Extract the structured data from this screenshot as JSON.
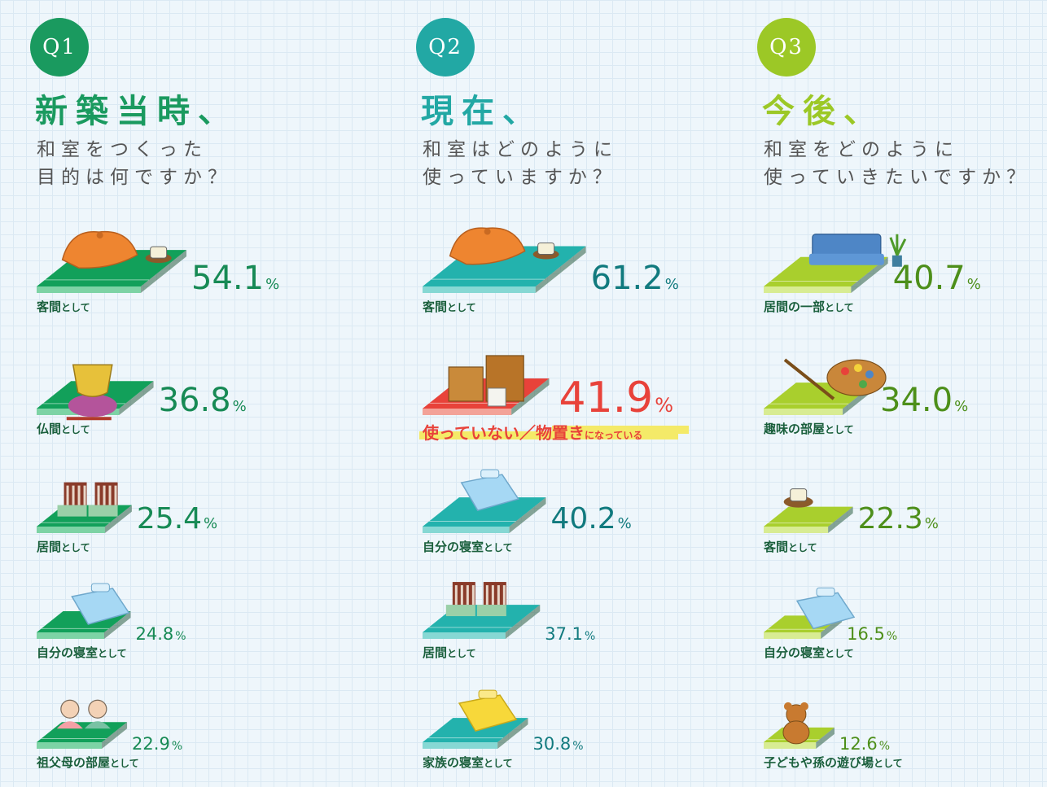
{
  "columns": [
    {
      "id": "q1",
      "badge": "Q1",
      "heading": "新築当時、",
      "subtitle_lines": [
        "和室をつくった",
        "目的は何ですか？"
      ],
      "color": "#178a55",
      "label_color": "#1a5f3c",
      "badge_color": "#1a9a5f"
    },
    {
      "id": "q2",
      "badge": "Q2",
      "heading": "現在、",
      "subtitle_lines": [
        "和室はどのように",
        "使っていますか？"
      ],
      "color": "#117a7e",
      "label_color": "#1a5f3c",
      "badge_color": "#22a8a4"
    },
    {
      "id": "q3",
      "badge": "Q3",
      "heading": "今後、",
      "subtitle_lines": [
        "和室をどのように",
        "使っていきたいですか？"
      ],
      "color": "#4d8f1a",
      "label_color": "#1a5f3c",
      "badge_color": "#9cc826"
    }
  ],
  "chart_data": [
    {
      "type": "bar",
      "title": "新築当時、和室をつくった目的は何ですか？",
      "categories": [
        "客間として",
        "仏間として",
        "居間として",
        "自分の寝室として",
        "祖父母の部屋として"
      ],
      "values": [
        54.1,
        36.8,
        25.4,
        24.8,
        22.9
      ],
      "unit": "%"
    },
    {
      "type": "bar",
      "title": "現在、和室はどのように使っていますか？",
      "categories": [
        "客間として",
        "使っていない／物置きになっている",
        "自分の寝室として",
        "居間として",
        "家族の寝室として"
      ],
      "values": [
        61.2,
        41.9,
        40.2,
        37.1,
        30.8
      ],
      "unit": "%",
      "highlight_index": 1,
      "highlight_color": "#e8423a"
    },
    {
      "type": "bar",
      "title": "今後、和室をどのように使っていきたいですか？",
      "categories": [
        "居間の一部として",
        "趣味の部屋として",
        "客間として",
        "自分の寝室として",
        "子どもや孫の遊び場として"
      ],
      "values": [
        40.7,
        34.0,
        22.3,
        16.5,
        12.6
      ],
      "unit": "%"
    }
  ],
  "labels": [
    [
      {
        "main": "客間",
        "small": "として"
      },
      {
        "main": "仏間",
        "small": "として"
      },
      {
        "main": "居間",
        "small": "として"
      },
      {
        "main": "自分の寝室",
        "small": "として"
      },
      {
        "main": "祖父母の部屋",
        "small": "として"
      }
    ],
    [
      {
        "main": "客間",
        "small": "として"
      },
      {
        "main": "使っていない／物置き",
        "small": "になっている"
      },
      {
        "main": "自分の寝室",
        "small": "として"
      },
      {
        "main": "居間",
        "small": "として"
      },
      {
        "main": "家族の寝室",
        "small": "として"
      }
    ],
    [
      {
        "main": "居間の一部",
        "small": "として"
      },
      {
        "main": "趣味の部屋",
        "small": "として"
      },
      {
        "main": "客間",
        "small": "として"
      },
      {
        "main": "自分の寝室",
        "small": "として"
      },
      {
        "main": "子どもや孫の遊び場",
        "small": "として"
      }
    ]
  ],
  "illustrations": [
    [
      "cushion-tea-icon",
      "buddhist-bell-icon",
      "zaisu-chairs-icon",
      "futon-icon",
      "grandparents-icon"
    ],
    [
      "cushion-tea-icon",
      "cardboard-boxes-icon",
      "futon-icon",
      "zaisu-chairs-icon",
      "yellow-futon-icon"
    ],
    [
      "sofa-plant-icon",
      "paint-palette-icon",
      "teacup-icon",
      "futon-icon",
      "teddy-bear-icon"
    ]
  ],
  "palette": {
    "q1_mat_top": "#12a05a",
    "q1_mat_side": "#7dd3a5",
    "q2_mat_top": "#23b2ad",
    "q2_mat_side": "#86d8d4",
    "q3_mat_top": "#a9cf2d",
    "q3_mat_side": "#d8ec93",
    "q2_highlight_top": "#e8423a",
    "q2_highlight_side": "#f3a298"
  }
}
